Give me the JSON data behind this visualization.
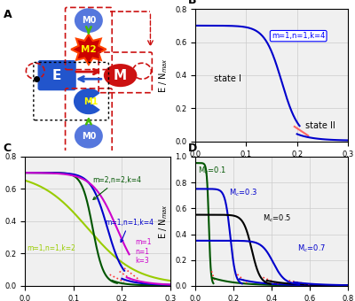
{
  "panel_B": {
    "title": "B",
    "xlim": [
      0,
      0.3
    ],
    "ylim": [
      0,
      0.8
    ],
    "xticks": [
      0,
      0.1,
      0.2,
      0.3
    ],
    "yticks": [
      0,
      0.2,
      0.4,
      0.6,
      0.8
    ],
    "color_stable": "#0000CC",
    "color_unstable": "#FF6666",
    "state_I": "state I",
    "state_II": "state II",
    "label": "m=1,n=1,k=4"
  },
  "panel_C": {
    "title": "C",
    "xlim": [
      0,
      0.3
    ],
    "ylim": [
      0,
      0.8
    ],
    "xticks": [
      0,
      0.1,
      0.2,
      0.3
    ],
    "yticks": [
      0,
      0.2,
      0.4,
      0.6,
      0.8
    ],
    "color_k4_m2n2": "#005500",
    "color_k4_m1n1": "#0000CC",
    "color_k3": "#CC00CC",
    "color_k2": "#99CC00",
    "color_unstable": "#FF3333"
  },
  "panel_D": {
    "title": "D",
    "xlim": [
      0,
      0.8
    ],
    "ylim": [
      0,
      1.0
    ],
    "xticks": [
      0,
      0.2,
      0.4,
      0.6,
      0.8
    ],
    "yticks": [
      0,
      0.2,
      0.4,
      0.6,
      0.8,
      1.0
    ],
    "color_mc01": "#005500",
    "color_mc03": "#0000CC",
    "color_mc05": "#000000",
    "color_mc07": "#0000CC",
    "color_unstable": "#FF3333"
  },
  "bg_color": "#f0f0f0",
  "grid_color": "#cccccc"
}
